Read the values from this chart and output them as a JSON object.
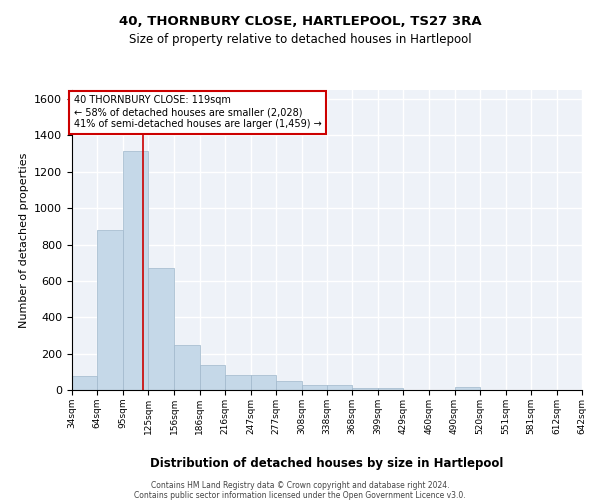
{
  "title": "40, THORNBURY CLOSE, HARTLEPOOL, TS27 3RA",
  "subtitle": "Size of property relative to detached houses in Hartlepool",
  "xlabel": "Distribution of detached houses by size in Hartlepool",
  "ylabel": "Number of detached properties",
  "footnote1": "Contains HM Land Registry data © Crown copyright and database right 2024.",
  "footnote2": "Contains public sector information licensed under the Open Government Licence v3.0.",
  "bin_edges": [
    34,
    64,
    95,
    125,
    156,
    186,
    216,
    247,
    277,
    308,
    338,
    368,
    399,
    429,
    460,
    490,
    520,
    551,
    581,
    612,
    642
  ],
  "bar_heights": [
    75,
    880,
    1315,
    670,
    245,
    140,
    80,
    80,
    48,
    25,
    25,
    12,
    12,
    0,
    0,
    18,
    0,
    0,
    0,
    0
  ],
  "bar_color": "#c5d8e8",
  "bar_edge_color": "#a0b8cc",
  "vline_x": 119,
  "vline_color": "#cc0000",
  "annotation_line1": "40 THORNBURY CLOSE: 119sqm",
  "annotation_line2": "← 58% of detached houses are smaller (2,028)",
  "annotation_line3": "41% of semi-detached houses are larger (1,459) →",
  "annotation_box_color": "#ffffff",
  "annotation_box_edge": "#cc0000",
  "ylim": [
    0,
    1650
  ],
  "background_color": "#eef2f8",
  "grid_color": "#ffffff",
  "tick_labels": [
    "34sqm",
    "64sqm",
    "95sqm",
    "125sqm",
    "156sqm",
    "186sqm",
    "216sqm",
    "247sqm",
    "277sqm",
    "308sqm",
    "338sqm",
    "368sqm",
    "399sqm",
    "429sqm",
    "460sqm",
    "490sqm",
    "520sqm",
    "551sqm",
    "581sqm",
    "612sqm",
    "642sqm"
  ]
}
